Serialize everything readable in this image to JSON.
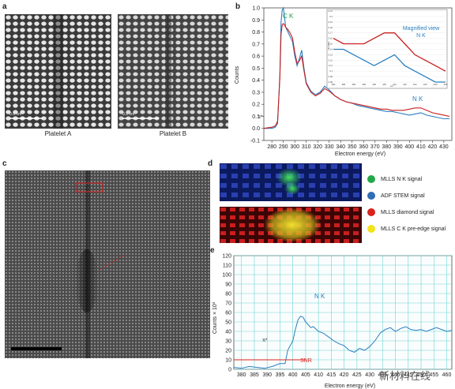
{
  "panels": {
    "a": {
      "label": "a",
      "platelet_a_caption": "Platelet A",
      "platelet_b_caption": "Platelet B",
      "scalebar_a_text": "0.5 nm",
      "scalebar_b_text": "0.5 nm"
    },
    "b": {
      "label": "b",
      "peak_label_ck": "C K",
      "peak_label_nk": "N K",
      "pistar_label": "π*",
      "inset_title": "Magnified view",
      "inset_nk": "N K",
      "inset_ylabel": "Counts",
      "inset_xlabel": "eV",
      "inset_yticks": [
        "0.21",
        "0.2",
        "0.19",
        "0.18",
        "0.17",
        "0.16",
        "0.15",
        "0.14",
        "0.13",
        "0.12",
        "0.11",
        "0.1",
        "0.09",
        "0.08"
      ],
      "inset_xticks": [
        "380",
        "385",
        "390",
        "395",
        "400",
        "405",
        "410",
        "415",
        "420",
        "425",
        "430",
        "435"
      ]
    },
    "c": {
      "label": "c"
    },
    "d": {
      "label": "d",
      "legend": [
        {
          "text": "MLLS N K signal",
          "color": "#22a84a"
        },
        {
          "text": "ADF STEM signal",
          "color": "#2f6db5"
        },
        {
          "text": "MLLS diamond signal",
          "color": "#d9231f"
        },
        {
          "text": "MLLS C K pre-edge signal",
          "color": "#f2e21b"
        }
      ]
    },
    "e": {
      "label": "e",
      "peak_label": "N K",
      "pistar_label": "π*",
      "snr_label": "SNR"
    }
  },
  "watermark": "新材料在线",
  "chart_data": [
    {
      "type": "line",
      "panel": "b",
      "xlabel": "Electron energy (eV)",
      "ylabel": "Counts",
      "xlim": [
        273,
        437
      ],
      "ylim": [
        -0.1,
        1.0
      ],
      "xticks": [
        280,
        290,
        300,
        310,
        320,
        330,
        340,
        350,
        360,
        370,
        380,
        390,
        400,
        410,
        420,
        430
      ],
      "yticks": [
        -0.1,
        0,
        0.1,
        0.2,
        0.3,
        0.4,
        0.5,
        0.6,
        0.7,
        0.8,
        0.9,
        1.0
      ],
      "series": [
        {
          "color": "#2a7fc0",
          "x": [
            273,
            280,
            283,
            285,
            287,
            288,
            289,
            290,
            291,
            292,
            294,
            296,
            298,
            300,
            302,
            304,
            306,
            308,
            310,
            314,
            318,
            322,
            326,
            330,
            335,
            340,
            345,
            350,
            355,
            360,
            365,
            370,
            375,
            380,
            385,
            390,
            395,
            400,
            405,
            410,
            415,
            420,
            425,
            430,
            435
          ],
          "y": [
            0,
            0,
            0.01,
            0.04,
            0.45,
            0.88,
            0.98,
            1.0,
            0.93,
            0.84,
            0.8,
            0.76,
            0.72,
            0.6,
            0.52,
            0.58,
            0.65,
            0.5,
            0.38,
            0.31,
            0.28,
            0.3,
            0.35,
            0.32,
            0.27,
            0.24,
            0.22,
            0.21,
            0.19,
            0.18,
            0.17,
            0.16,
            0.15,
            0.14,
            0.14,
            0.13,
            0.12,
            0.11,
            0.12,
            0.13,
            0.11,
            0.1,
            0.09,
            0.08,
            0.08
          ]
        },
        {
          "color": "#c81e1e",
          "x": [
            273,
            280,
            283,
            285,
            287,
            288,
            289,
            290,
            291,
            292,
            294,
            296,
            298,
            300,
            302,
            304,
            306,
            308,
            310,
            314,
            318,
            322,
            326,
            330,
            335,
            340,
            345,
            350,
            355,
            360,
            365,
            370,
            375,
            380,
            385,
            390,
            395,
            400,
            405,
            410,
            415,
            420,
            425,
            430,
            435
          ],
          "y": [
            0,
            0.01,
            0.02,
            0.06,
            0.42,
            0.78,
            0.86,
            0.87,
            0.86,
            0.84,
            0.82,
            0.79,
            0.75,
            0.63,
            0.54,
            0.56,
            0.6,
            0.48,
            0.37,
            0.3,
            0.27,
            0.29,
            0.33,
            0.31,
            0.27,
            0.24,
            0.22,
            0.21,
            0.2,
            0.19,
            0.18,
            0.17,
            0.16,
            0.16,
            0.15,
            0.15,
            0.15,
            0.16,
            0.17,
            0.17,
            0.15,
            0.13,
            0.12,
            0.11,
            0.1
          ]
        }
      ]
    },
    {
      "type": "line",
      "panel": "e",
      "xlabel": "Electron energy (eV)",
      "ylabel": "Counts × 10³",
      "xlim": [
        377,
        462
      ],
      "ylim": [
        0,
        120
      ],
      "xticks": [
        380,
        385,
        390,
        395,
        400,
        405,
        410,
        415,
        420,
        425,
        430,
        435,
        440,
        445,
        450,
        455,
        460
      ],
      "yticks": [
        0,
        10,
        20,
        30,
        40,
        50,
        60,
        70,
        80,
        90,
        100,
        110,
        120
      ],
      "snr_level": 10,
      "series": [
        {
          "color": "#2a7fc0",
          "x": [
            377,
            380,
            383,
            386,
            389,
            392,
            395,
            397,
            398,
            400,
            401,
            402,
            403,
            404,
            405,
            406,
            407,
            408,
            410,
            412,
            414,
            416,
            418,
            420,
            422,
            424,
            426,
            428,
            430,
            432,
            434,
            436,
            438,
            440,
            442,
            444,
            446,
            448,
            450,
            452,
            454,
            456,
            458,
            460,
            462
          ],
          "y": [
            2,
            1,
            3,
            2,
            1,
            3,
            6,
            6,
            20,
            30,
            42,
            52,
            56,
            55,
            50,
            47,
            44,
            45,
            40,
            38,
            34,
            30,
            27,
            25,
            20,
            18,
            22,
            20,
            24,
            30,
            38,
            42,
            44,
            40,
            43,
            45,
            42,
            41,
            42,
            40,
            42,
            44,
            42,
            40,
            41
          ]
        }
      ]
    }
  ]
}
